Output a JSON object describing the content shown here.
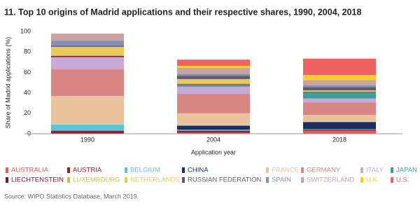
{
  "chart_data": {
    "type": "stacked-bar",
    "title": "11. Top 10 origins of Madrid applications and their respective shares, 1990, 2004, 2018",
    "x_label": "Application year",
    "y_label": "Share of Madrid applications (%)",
    "source": "Source: WIPO Statistics Database, March 2019.",
    "categories": [
      "1990",
      "2004",
      "2018"
    ],
    "ylim": [
      0,
      100
    ],
    "yticks": [
      0,
      20,
      40,
      60,
      80,
      100
    ],
    "grid": false,
    "series": [
      {
        "name": "AUSTRALIA",
        "color": "#e8575a",
        "values": [
          0,
          1,
          3
        ]
      },
      {
        "name": "AUSTRIA",
        "color": "#9b1b30",
        "values": [
          3,
          2,
          1
        ]
      },
      {
        "name": "BELGIUM",
        "color": "#5cc3dc",
        "values": [
          6,
          1,
          0.5
        ]
      },
      {
        "name": "CHINA",
        "color": "#1b2f5e",
        "values": [
          0,
          4,
          7
        ]
      },
      {
        "name": "FRANCE",
        "color": "#e9c29e",
        "values": [
          28,
          12,
          7
        ]
      },
      {
        "name": "GERMANY",
        "color": "#d88584",
        "values": [
          26,
          19,
          12
        ]
      },
      {
        "name": "ITALY",
        "color": "#c7aad8",
        "values": [
          12,
          7,
          4
        ]
      },
      {
        "name": "JAPAN",
        "color": "#3f9c9a",
        "values": [
          0,
          2,
          6
        ]
      },
      {
        "name": "LIECHTENSTEIN",
        "color": "#7a1422",
        "values": [
          1,
          0.5,
          0.5
        ]
      },
      {
        "name": "LUXEMBOURG",
        "color": "#d6b84a",
        "values": [
          1,
          1,
          0.5
        ]
      },
      {
        "name": "NETHERLANDS",
        "color": "#e9c95a",
        "values": [
          8,
          4,
          1
        ]
      },
      {
        "name": "RUSSIAN FEDERATION",
        "color": "#5c5a6c",
        "values": [
          1,
          3,
          3
        ]
      },
      {
        "name": "SPAIN",
        "color": "#8291b3",
        "values": [
          5,
          2,
          2
        ]
      },
      {
        "name": "SWITZERLAND",
        "color": "#c9a2a2",
        "values": [
          7,
          6,
          5
        ]
      },
      {
        "name": "U.K.",
        "color": "#f7d021",
        "values": [
          0,
          2,
          5
        ]
      },
      {
        "name": "U.S.",
        "color": "#f06262",
        "values": [
          0,
          6,
          16
        ]
      }
    ]
  }
}
